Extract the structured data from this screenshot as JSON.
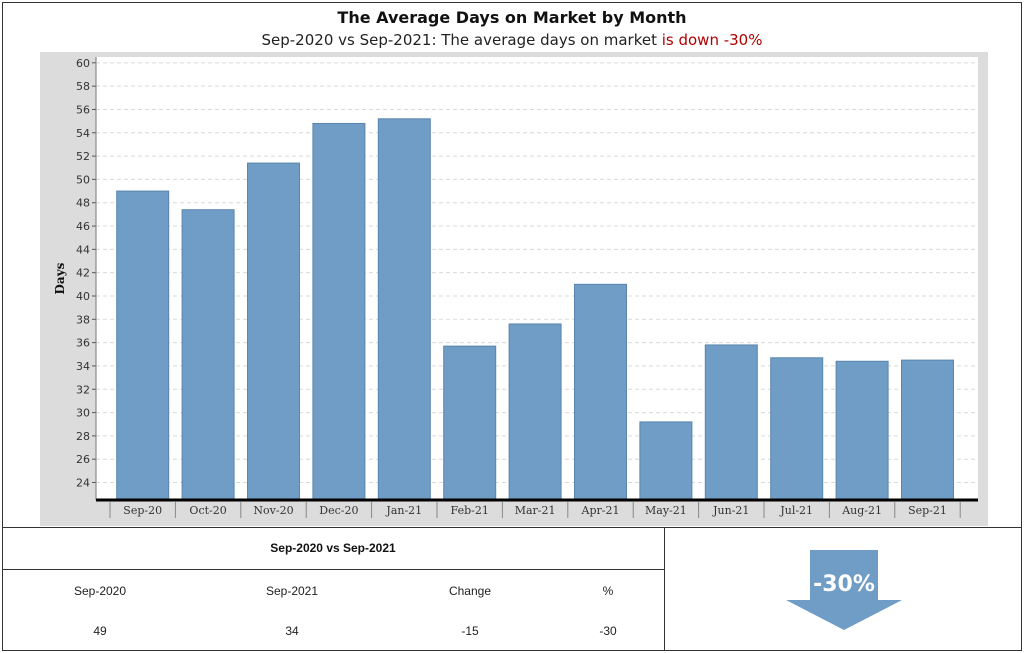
{
  "header": {
    "title": "The Average Days on Market by Month",
    "subtitle_main": "Sep-2020 vs Sep-2021: The average days on market ",
    "subtitle_highlight": "is down -30%"
  },
  "colors": {
    "bar": "#6f9dc5",
    "bar_edge": "#5a86ad",
    "plot_bg": "#ffffff",
    "frame_bg": "#dcdcdc",
    "grid": "#d9d9d9",
    "arrow": "#6f9dc5",
    "down_text": "#b00000"
  },
  "chart_data": {
    "type": "bar",
    "title": "The Average Days on Market by Month",
    "ylabel": "Days",
    "xlabel": "",
    "ylim": [
      22.5,
      60.5
    ],
    "yticks": [
      24,
      26,
      28,
      30,
      32,
      34,
      36,
      38,
      40,
      42,
      44,
      46,
      48,
      50,
      52,
      54,
      56,
      58,
      60
    ],
    "grid": true,
    "categories": [
      "Sep-20",
      "Oct-20",
      "Nov-20",
      "Dec-20",
      "Jan-21",
      "Feb-21",
      "Mar-21",
      "Apr-21",
      "May-21",
      "Jun-21",
      "Jul-21",
      "Aug-21",
      "Sep-21"
    ],
    "values": [
      49,
      47.4,
      51.4,
      54.8,
      55.2,
      35.7,
      37.6,
      41,
      29.2,
      35.8,
      34.7,
      34.4,
      34.5
    ]
  },
  "summary": {
    "title": "Sep-2020 vs Sep-2021",
    "headers": [
      "Sep-2020",
      "Sep-2021",
      "Change",
      "%"
    ],
    "values": [
      "49",
      "34",
      "-15",
      "-30"
    ],
    "badge": "-30%",
    "badge_icon": "down-arrow-icon"
  }
}
